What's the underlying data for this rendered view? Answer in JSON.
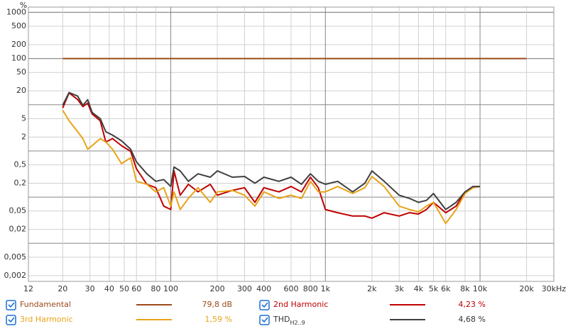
{
  "chart_data": {
    "type": "line",
    "y_unit": "%",
    "xlim": [
      12,
      30000
    ],
    "ylim": [
      0.0015,
      1300
    ],
    "log_x": true,
    "log_y": true,
    "grid": true,
    "xticks": [
      12,
      20,
      30,
      40,
      50,
      60,
      80,
      100,
      200,
      300,
      400,
      600,
      800,
      {
        "value": 1000,
        "label": "1k"
      },
      {
        "value": 2000,
        "label": "2k"
      },
      {
        "value": 3000,
        "label": "3k"
      },
      {
        "value": 4000,
        "label": "4k"
      },
      {
        "value": 5000,
        "label": "5k"
      },
      {
        "value": 6000,
        "label": "6k"
      },
      {
        "value": 8000,
        "label": "8k"
      },
      {
        "value": 10000,
        "label": "10k"
      },
      {
        "value": 20000,
        "label": "20k"
      },
      {
        "value": 30000,
        "label": "30kHz"
      }
    ],
    "yticks": [
      1000,
      500,
      200,
      100,
      50,
      20,
      5,
      2,
      {
        "value": 0.5,
        "label": "0,5"
      },
      {
        "value": 0.2,
        "label": "0,2"
      },
      {
        "value": 0.05,
        "label": "0,05"
      },
      {
        "value": 0.02,
        "label": "0,02"
      },
      {
        "value": 0.005,
        "label": "0,005"
      },
      {
        "value": 0.002,
        "label": "0,002"
      }
    ],
    "series": [
      {
        "name": "Fundamental",
        "color": "#9c4a1a",
        "legend_value": "79,8 dB",
        "x": [
          20,
          20000
        ],
        "values": [
          100,
          100
        ]
      },
      {
        "name": "2nd Harmonic",
        "color": "#c00000",
        "legend_value": "4,23 %",
        "x": [
          20,
          22,
          25,
          27,
          29,
          31,
          35,
          38,
          42,
          48,
          55,
          60,
          70,
          80,
          90,
          100,
          105,
          115,
          130,
          150,
          180,
          200,
          250,
          300,
          350,
          400,
          500,
          600,
          700,
          800,
          900,
          1000,
          1200,
          1500,
          1800,
          2000,
          2400,
          3000,
          3500,
          4000,
          4500,
          5000,
          6000,
          7000,
          8000,
          9000,
          10000
        ],
        "values": [
          8.5,
          18,
          13,
          9.1,
          10.8,
          6.3,
          4.5,
          1.56,
          1.85,
          1.3,
          0.98,
          0.41,
          0.19,
          0.16,
          0.064,
          0.054,
          0.37,
          0.11,
          0.19,
          0.13,
          0.19,
          0.11,
          0.14,
          0.16,
          0.077,
          0.16,
          0.13,
          0.17,
          0.13,
          0.27,
          0.16,
          0.054,
          0.046,
          0.039,
          0.039,
          0.035,
          0.046,
          0.039,
          0.046,
          0.043,
          0.054,
          0.077,
          0.046,
          0.064,
          0.13,
          0.16,
          0.17
        ]
      },
      {
        "name": "3rd Harmonic",
        "color": "#e8a317",
        "legend_value": "1,59 %",
        "x": [
          20,
          22,
          25,
          27,
          29,
          31,
          35,
          38,
          42,
          48,
          55,
          60,
          70,
          80,
          90,
          100,
          105,
          115,
          130,
          150,
          180,
          200,
          250,
          300,
          350,
          400,
          500,
          600,
          700,
          800,
          900,
          1000,
          1200,
          1500,
          1800,
          2000,
          2400,
          3000,
          3500,
          4000,
          4500,
          5000,
          6000,
          7000,
          8000,
          9000,
          10000
        ],
        "values": [
          7.6,
          4.5,
          2.6,
          1.85,
          1.09,
          1.3,
          1.85,
          1.56,
          1.09,
          0.53,
          0.71,
          0.22,
          0.19,
          0.13,
          0.16,
          0.064,
          0.13,
          0.054,
          0.094,
          0.16,
          0.077,
          0.13,
          0.14,
          0.11,
          0.064,
          0.13,
          0.094,
          0.11,
          0.094,
          0.22,
          0.13,
          0.13,
          0.17,
          0.12,
          0.16,
          0.28,
          0.17,
          0.064,
          0.054,
          0.048,
          0.064,
          0.077,
          0.027,
          0.054,
          0.12,
          0.16,
          0.17
        ]
      },
      {
        "name": "THD",
        "name_subscript": "H2..9",
        "color": "#404040",
        "legend_value": "4,68 %",
        "x": [
          20,
          22,
          25,
          27,
          29,
          31,
          35,
          38,
          42,
          48,
          55,
          60,
          70,
          80,
          90,
          100,
          105,
          115,
          130,
          150,
          180,
          200,
          250,
          300,
          350,
          400,
          500,
          600,
          700,
          800,
          900,
          1000,
          1200,
          1500,
          1800,
          2000,
          2400,
          3000,
          3500,
          4000,
          4500,
          5000,
          6000,
          7000,
          8000,
          9000,
          10000
        ],
        "values": [
          9.7,
          18.4,
          15.4,
          9.7,
          12.9,
          6.8,
          5.0,
          2.6,
          2.2,
          1.66,
          1.09,
          0.58,
          0.32,
          0.22,
          0.24,
          0.17,
          0.45,
          0.37,
          0.22,
          0.32,
          0.27,
          0.37,
          0.27,
          0.28,
          0.2,
          0.27,
          0.22,
          0.27,
          0.19,
          0.32,
          0.22,
          0.19,
          0.22,
          0.13,
          0.2,
          0.37,
          0.22,
          0.11,
          0.094,
          0.077,
          0.085,
          0.12,
          0.054,
          0.077,
          0.13,
          0.17,
          0.17
        ]
      }
    ]
  }
}
